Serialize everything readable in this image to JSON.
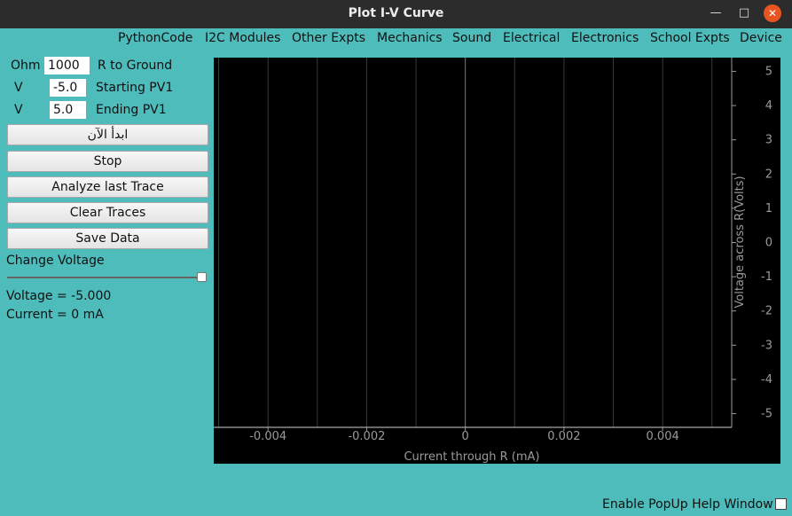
{
  "window": {
    "title": "Plot I-V Curve",
    "minimize_glyph": "—",
    "maximize_glyph": "□",
    "close_glyph": "✕"
  },
  "menu": [
    "PythonCode",
    "I2C Modules",
    "Other Expts",
    "Mechanics",
    "Sound",
    "Electrical",
    "Electronics",
    "School Expts",
    "Device"
  ],
  "controls": {
    "resistor": {
      "unit": "Ohm",
      "value": "1000",
      "label": "R to Ground"
    },
    "start": {
      "unit": "V",
      "value": "-5.0",
      "label": "Starting PV1"
    },
    "end": {
      "unit": "V",
      "value": "5.0",
      "label": "Ending PV1"
    }
  },
  "buttons": {
    "start": "ابدأ الآن",
    "stop": "Stop",
    "analyze": "Analyze last Trace",
    "clear": "Clear Traces",
    "save": "Save Data"
  },
  "slider": {
    "label": "Change Voltage",
    "value_fraction": 1.0
  },
  "readouts": {
    "voltage": "Voltage = -5.000",
    "current": "Current = 0 mA"
  },
  "chart_data": {
    "type": "line",
    "xlabel": "Current through R (mA)",
    "ylabel": "Voltage across R(Volts)",
    "xlim": [
      -0.0051,
      0.0054
    ],
    "ylim": [
      -5.4,
      5.4
    ],
    "x_ticks": [
      -0.004,
      -0.002,
      0,
      0.002,
      0.004
    ],
    "x_tick_labels": [
      "-0.004",
      "-0.002",
      "0",
      "0.002",
      "0.004"
    ],
    "y_ticks": [
      5,
      4,
      3,
      2,
      1,
      0,
      -1,
      -2,
      -3,
      -4,
      -5
    ],
    "y_tick_labels": [
      "5",
      "4",
      "3",
      "2",
      "1",
      "0",
      "-1",
      "-2",
      "-3",
      "-4",
      "-5"
    ],
    "grid": true,
    "y_axis_position": "right",
    "background": "#000000",
    "grid_color": "#3a3a3a",
    "zero_line_color": "#7a7a7a",
    "text_color": "#9a9a9a",
    "series": []
  },
  "popup_help": {
    "label": "Enable PopUp Help Window",
    "checked": false
  }
}
